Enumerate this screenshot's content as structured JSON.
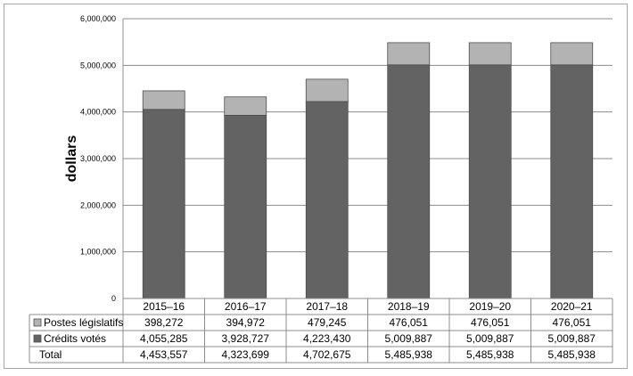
{
  "chart_data": {
    "type": "bar",
    "stacked": true,
    "ylabel": "dollars",
    "ylim": [
      0,
      6000000
    ],
    "yticks": [
      "0",
      "1,000,000",
      "2,000,000",
      "3,000,000",
      "4,000,000",
      "5,000,000",
      "6,000,000"
    ],
    "ytick_values": [
      0,
      1000000,
      2000000,
      3000000,
      4000000,
      5000000,
      6000000
    ],
    "grid": true,
    "legend_placement": "data-table",
    "categories": [
      "2015–16",
      "2016–17",
      "2017–18",
      "2018–19",
      "2019–20",
      "2020–21"
    ],
    "series": [
      {
        "name": "Crédits votés",
        "color": "#636363",
        "values": [
          4055285,
          3928727,
          4223430,
          5009887,
          5009887,
          5009887
        ],
        "labels": [
          "4,055,285",
          "3,928,727",
          "4,223,430",
          "5,009,887",
          "5,009,887",
          "5,009,887"
        ]
      },
      {
        "name": "Postes législatifs",
        "color": "#b3b3b3",
        "values": [
          398272,
          394972,
          479245,
          476051,
          476051,
          476051
        ],
        "labels": [
          "398,272",
          "394,972",
          "479,245",
          "476,051",
          "476,051",
          "476,051"
        ]
      }
    ],
    "table_rows": [
      {
        "name": "Postes législatifs",
        "color": "#b3b3b3",
        "cells": [
          "398,272",
          "394,972",
          "479,245",
          "476,051",
          "476,051",
          "476,051"
        ]
      },
      {
        "name": "Crédits votés",
        "color": "#636363",
        "cells": [
          "4,055,285",
          "3,928,727",
          "4,223,430",
          "5,009,887",
          "5,009,887",
          "5,009,887"
        ]
      },
      {
        "name": "Total",
        "color": null,
        "cells": [
          "4,453,557",
          "4,323,699",
          "4,702,675",
          "5,485,938",
          "5,485,938",
          "5,485,938"
        ]
      }
    ]
  }
}
